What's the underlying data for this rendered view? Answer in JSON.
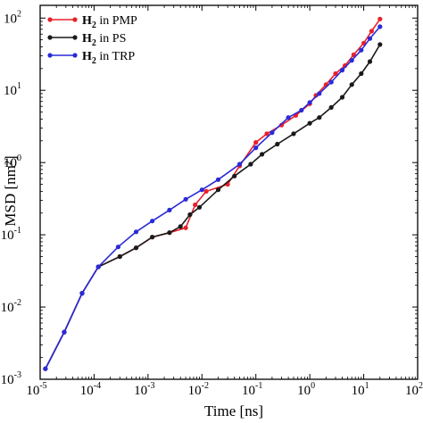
{
  "chart_data": {
    "type": "line",
    "xlabel": "Time [ns]",
    "ylabel": "MSD [nm²]",
    "xscale": "log",
    "yscale": "log",
    "xlim": [
      1e-05,
      100
    ],
    "ylim": [
      0.001,
      150
    ],
    "x_ticks": [
      {
        "base": "10",
        "exp": "-5",
        "value": 1e-05
      },
      {
        "base": "10",
        "exp": "-4",
        "value": 0.0001
      },
      {
        "base": "10",
        "exp": "-3",
        "value": 0.001
      },
      {
        "base": "10",
        "exp": "-2",
        "value": 0.01
      },
      {
        "base": "10",
        "exp": "-1",
        "value": 0.1
      },
      {
        "base": "10",
        "exp": "0",
        "value": 1
      },
      {
        "base": "10",
        "exp": "1",
        "value": 10
      },
      {
        "base": "10",
        "exp": "2",
        "value": 100
      }
    ],
    "y_ticks": [
      {
        "base": "10",
        "exp": "-3",
        "value": 0.001
      },
      {
        "base": "10",
        "exp": "-2",
        "value": 0.01
      },
      {
        "base": "10",
        "exp": "-1",
        "value": 0.1
      },
      {
        "base": "10",
        "exp": "0",
        "value": 1
      },
      {
        "base": "10",
        "exp": "1",
        "value": 10
      },
      {
        "base": "10",
        "exp": "2",
        "value": 100
      }
    ],
    "grid": false,
    "legend_position": "top-left",
    "series": [
      {
        "name_main": "H",
        "name_sub": "2",
        "name_rest": " in PMP",
        "color": "#e8202a",
        "points": [
          [
            1.25e-05,
            0.0014
          ],
          [
            2.8e-05,
            0.0045
          ],
          [
            6e-05,
            0.0155
          ],
          [
            0.00012,
            0.036
          ],
          [
            0.0003,
            0.05
          ],
          [
            0.0006,
            0.066
          ],
          [
            0.0012,
            0.093
          ],
          [
            0.0025,
            0.107
          ],
          [
            0.005,
            0.125
          ],
          [
            0.0075,
            0.26
          ],
          [
            0.012,
            0.4
          ],
          [
            0.03,
            0.5
          ],
          [
            0.05,
            0.9
          ],
          [
            0.1,
            1.9
          ],
          [
            0.16,
            2.5
          ],
          [
            0.3,
            3.3
          ],
          [
            0.55,
            4.5
          ],
          [
            1.0,
            6.5
          ],
          [
            1.3,
            8.5
          ],
          [
            2.0,
            12
          ],
          [
            3.0,
            17
          ],
          [
            4.5,
            22
          ],
          [
            6.5,
            31
          ],
          [
            10,
            45
          ],
          [
            14,
            66
          ],
          [
            20,
            97
          ]
        ]
      },
      {
        "name_main": "H",
        "name_sub": "2",
        "name_rest": " in PS",
        "color": "#1a1a1a",
        "points": [
          [
            1.25e-05,
            0.0014
          ],
          [
            2.8e-05,
            0.0045
          ],
          [
            6e-05,
            0.0155
          ],
          [
            0.00012,
            0.036
          ],
          [
            0.0003,
            0.05
          ],
          [
            0.0006,
            0.066
          ],
          [
            0.0012,
            0.093
          ],
          [
            0.0025,
            0.107
          ],
          [
            0.004,
            0.13
          ],
          [
            0.006,
            0.19
          ],
          [
            0.009,
            0.24
          ],
          [
            0.02,
            0.42
          ],
          [
            0.04,
            0.65
          ],
          [
            0.08,
            0.95
          ],
          [
            0.13,
            1.3
          ],
          [
            0.25,
            1.8
          ],
          [
            0.5,
            2.5
          ],
          [
            1.0,
            3.5
          ],
          [
            1.5,
            4.2
          ],
          [
            2.5,
            5.8
          ],
          [
            4,
            8
          ],
          [
            6,
            12
          ],
          [
            9,
            17
          ],
          [
            13,
            25
          ],
          [
            20,
            43
          ]
        ]
      },
      {
        "name_main": "H",
        "name_sub": "2",
        "name_rest": " in TRP",
        "color": "#2a2ad8",
        "points": [
          [
            1.25e-05,
            0.0014
          ],
          [
            2.8e-05,
            0.0045
          ],
          [
            6e-05,
            0.0155
          ],
          [
            0.00012,
            0.036
          ],
          [
            0.00028,
            0.068
          ],
          [
            0.0006,
            0.11
          ],
          [
            0.0012,
            0.155
          ],
          [
            0.0025,
            0.22
          ],
          [
            0.005,
            0.31
          ],
          [
            0.01,
            0.42
          ],
          [
            0.02,
            0.58
          ],
          [
            0.05,
            0.95
          ],
          [
            0.1,
            1.6
          ],
          [
            0.2,
            2.6
          ],
          [
            0.4,
            4.2
          ],
          [
            0.7,
            5.3
          ],
          [
            1.0,
            6.8
          ],
          [
            1.5,
            9
          ],
          [
            2.5,
            13
          ],
          [
            4,
            19
          ],
          [
            6,
            26
          ],
          [
            9,
            36
          ],
          [
            13,
            52
          ],
          [
            20,
            76
          ]
        ]
      }
    ]
  }
}
